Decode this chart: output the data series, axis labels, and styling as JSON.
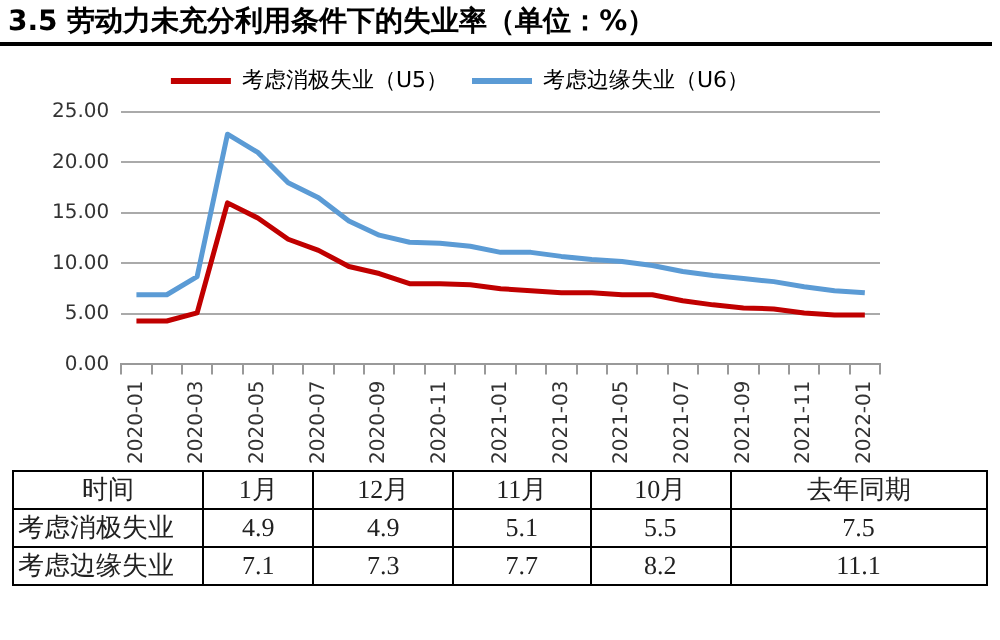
{
  "chart_data": [
    {
      "type": "line",
      "title": "3.5 劳动力未充分利用条件下的失业率（单位：%）",
      "categories": [
        "2020-01",
        null,
        "2020-03",
        null,
        "2020-05",
        null,
        "2020-07",
        null,
        "2020-09",
        null,
        "2020-11",
        null,
        "2021-01",
        null,
        "2021-03",
        null,
        "2021-05",
        null,
        "2021-07",
        null,
        "2021-09",
        null,
        "2021-11",
        null,
        "2022-01"
      ],
      "series": [
        {
          "name": "考虑消极失业（U5）",
          "color": "#c00000",
          "values": [
            4.3,
            4.3,
            5.1,
            16.0,
            14.5,
            12.4,
            11.3,
            9.7,
            9.0,
            8.0,
            8.0,
            7.9,
            7.5,
            7.3,
            7.1,
            7.1,
            6.9,
            6.9,
            6.3,
            5.9,
            5.6,
            5.5,
            5.1,
            4.9,
            4.9
          ]
        },
        {
          "name": "考虑边缘失业（U6）",
          "color": "#5b9bd5",
          "values": [
            6.9,
            6.9,
            8.7,
            22.8,
            21.0,
            18.0,
            16.5,
            14.2,
            12.8,
            12.1,
            12.0,
            11.7,
            11.1,
            11.1,
            10.7,
            10.4,
            10.2,
            9.8,
            9.2,
            8.8,
            8.5,
            8.2,
            7.7,
            7.3,
            7.1
          ]
        }
      ],
      "ylim": [
        0,
        25
      ],
      "yticks": [
        {
          "value": 0,
          "label": "0.00"
        },
        {
          "value": 5,
          "label": "5.00"
        },
        {
          "value": 10,
          "label": "10.00"
        },
        {
          "value": 15,
          "label": "15.00"
        },
        {
          "value": 20,
          "label": "20.00"
        },
        {
          "value": 25,
          "label": "25.00"
        }
      ],
      "grid": "y",
      "legend": "top",
      "marker": "none",
      "line_style": "solid"
    },
    {
      "type": "other",
      "xlabel": "时间",
      "categories": [
        "1月",
        "12月",
        "11月",
        "10月",
        "去年同期"
      ],
      "series": [
        {
          "name": "考虑消极失业",
          "values": [
            4.9,
            4.9,
            5.1,
            5.5,
            7.5
          ]
        },
        {
          "name": "考虑边缘失业",
          "values": [
            7.1,
            7.3,
            7.7,
            8.2,
            11.1
          ]
        }
      ],
      "data_labels": true
    }
  ]
}
